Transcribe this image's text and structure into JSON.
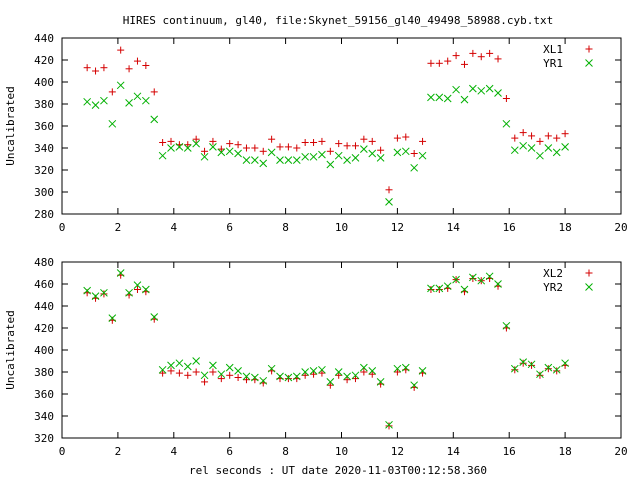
{
  "title": "HIRES continuum, gl40, file:Skynet_59156_gl40_49498_58988.cyb.txt",
  "xlabel": "rel seconds : UT date 2020-11-03T00:12:58.360",
  "chart_data": [
    {
      "type": "scatter",
      "ylabel": "Uncalibrated",
      "xlim": [
        0,
        20
      ],
      "ylim": [
        280,
        440
      ],
      "xticks": [
        0,
        2,
        4,
        6,
        8,
        10,
        12,
        14,
        16,
        18,
        20
      ],
      "yticks": [
        280,
        300,
        320,
        340,
        360,
        380,
        400,
        420,
        440
      ],
      "legend_position": "top-right",
      "x": [
        0.9,
        1.2,
        1.5,
        1.8,
        2.1,
        2.4,
        2.7,
        3.0,
        3.3,
        3.6,
        3.9,
        4.2,
        4.5,
        4.8,
        5.1,
        5.4,
        5.7,
        6.0,
        6.3,
        6.6,
        6.9,
        7.2,
        7.5,
        7.8,
        8.1,
        8.4,
        8.7,
        9.0,
        9.3,
        9.6,
        9.9,
        10.2,
        10.5,
        10.8,
        11.1,
        11.4,
        11.7,
        12.0,
        12.3,
        12.6,
        12.9,
        13.2,
        13.5,
        13.8,
        14.1,
        14.4,
        14.7,
        15.0,
        15.3,
        15.6,
        15.9,
        16.2,
        16.5,
        16.8,
        17.1,
        17.4,
        17.7,
        18.0
      ],
      "series": [
        {
          "name": "XL1",
          "color": "#d40000",
          "marker": "plus",
          "values": [
            413,
            410,
            413,
            391,
            429,
            412,
            419,
            415,
            391,
            345,
            346,
            343,
            343,
            348,
            337,
            346,
            339,
            344,
            343,
            340,
            340,
            337,
            348,
            341,
            341,
            340,
            345,
            345,
            346,
            337,
            344,
            342,
            342,
            348,
            346,
            338,
            302,
            349,
            350,
            335,
            346,
            417,
            417,
            419,
            424,
            416,
            426,
            423,
            426,
            421,
            385,
            349,
            354,
            351,
            346,
            351,
            349,
            353
          ]
        },
        {
          "name": "YR1",
          "color": "#00b000",
          "marker": "cross",
          "values": [
            382,
            379,
            383,
            362,
            397,
            381,
            387,
            383,
            366,
            333,
            340,
            341,
            340,
            344,
            332,
            341,
            336,
            337,
            335,
            329,
            329,
            326,
            336,
            329,
            329,
            329,
            332,
            332,
            334,
            325,
            333,
            329,
            331,
            339,
            335,
            331,
            291,
            336,
            337,
            322,
            333,
            386,
            386,
            385,
            393,
            384,
            394,
            392,
            394,
            390,
            362,
            338,
            342,
            340,
            333,
            340,
            336,
            341
          ]
        }
      ]
    },
    {
      "type": "scatter",
      "ylabel": "Uncalibrated",
      "xlim": [
        0,
        20
      ],
      "ylim": [
        320,
        480
      ],
      "xticks": [
        0,
        2,
        4,
        6,
        8,
        10,
        12,
        14,
        16,
        18,
        20
      ],
      "yticks": [
        320,
        340,
        360,
        380,
        400,
        420,
        440,
        460,
        480
      ],
      "legend_position": "top-right",
      "x": [
        0.9,
        1.2,
        1.5,
        1.8,
        2.1,
        2.4,
        2.7,
        3.0,
        3.3,
        3.6,
        3.9,
        4.2,
        4.5,
        4.8,
        5.1,
        5.4,
        5.7,
        6.0,
        6.3,
        6.6,
        6.9,
        7.2,
        7.5,
        7.8,
        8.1,
        8.4,
        8.7,
        9.0,
        9.3,
        9.6,
        9.9,
        10.2,
        10.5,
        10.8,
        11.1,
        11.4,
        11.7,
        12.0,
        12.3,
        12.6,
        12.9,
        13.2,
        13.5,
        13.8,
        14.1,
        14.4,
        14.7,
        15.0,
        15.3,
        15.6,
        15.9,
        16.2,
        16.5,
        16.8,
        17.1,
        17.4,
        17.7,
        18.0
      ],
      "series": [
        {
          "name": "XL2",
          "color": "#d40000",
          "marker": "plus",
          "values": [
            452,
            447,
            451,
            427,
            468,
            450,
            455,
            453,
            428,
            379,
            381,
            379,
            377,
            380,
            371,
            380,
            374,
            377,
            375,
            373,
            373,
            370,
            381,
            374,
            374,
            374,
            377,
            378,
            379,
            368,
            377,
            373,
            374,
            380,
            378,
            369,
            331,
            380,
            382,
            366,
            379,
            455,
            455,
            456,
            464,
            453,
            465,
            463,
            465,
            458,
            420,
            382,
            388,
            386,
            377,
            383,
            381,
            386
          ]
        },
        {
          "name": "YR2",
          "color": "#00b000",
          "marker": "cross",
          "values": [
            454,
            449,
            452,
            429,
            470,
            452,
            459,
            455,
            430,
            382,
            386,
            388,
            385,
            390,
            377,
            386,
            378,
            384,
            381,
            376,
            375,
            372,
            383,
            376,
            375,
            376,
            380,
            381,
            382,
            371,
            380,
            376,
            377,
            384,
            381,
            371,
            332,
            383,
            384,
            368,
            381,
            456,
            456,
            458,
            464,
            455,
            466,
            463,
            467,
            460,
            422,
            383,
            389,
            387,
            378,
            384,
            382,
            388
          ]
        }
      ]
    }
  ]
}
